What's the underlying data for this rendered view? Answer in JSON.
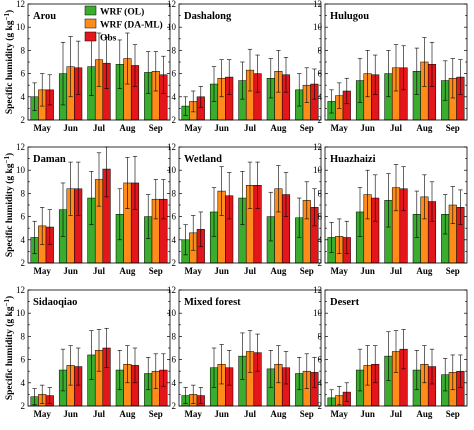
{
  "chart_data": {
    "type": "bar",
    "categories": [
      "May",
      "Jun",
      "Jul",
      "Aug",
      "Sep"
    ],
    "ylabel_pre": "Specific humidity (g kg",
    "ylabel_exp": "−1",
    "ylabel_post": ")",
    "ylim": [
      2,
      12
    ],
    "yticks": [
      2,
      4,
      6,
      8,
      10,
      12
    ],
    "legend": [
      "WRF (OL)",
      "WRF (DA-ML)",
      "Obs"
    ],
    "colors": [
      "#3aac2e",
      "#ff8c1a",
      "#e3161c"
    ],
    "panels": [
      {
        "title": "Arou",
        "series": [
          {
            "name": "WRF (OL)",
            "values": [
              4.0,
              6.0,
              6.6,
              6.8,
              6.1
            ],
            "err": [
              1.2,
              2.7,
              2.5,
              2.1,
              1.8
            ]
          },
          {
            "name": "WRF (DA-ML)",
            "values": [
              4.6,
              6.6,
              7.2,
              7.3,
              6.2
            ],
            "err": [
              1.4,
              2.6,
              2.3,
              2.2,
              1.7
            ]
          },
          {
            "name": "Obs",
            "values": [
              4.6,
              6.5,
              6.9,
              6.7,
              5.9
            ],
            "err": [
              1.3,
              2.3,
              2.2,
              1.8,
              1.6
            ]
          }
        ]
      },
      {
        "title": "Dashalong",
        "series": [
          {
            "name": "WRF (OL)",
            "values": [
              3.2,
              5.1,
              5.4,
              5.6,
              4.6
            ],
            "err": [
              0.8,
              1.5,
              1.6,
              1.7,
              1.4
            ]
          },
          {
            "name": "WRF (DA-ML)",
            "values": [
              3.6,
              5.6,
              6.3,
              6.2,
              5.0
            ],
            "err": [
              0.9,
              1.6,
              1.8,
              1.8,
              1.5
            ]
          },
          {
            "name": "Obs",
            "values": [
              4.0,
              5.7,
              6.0,
              5.9,
              5.1
            ],
            "err": [
              0.9,
              1.5,
              1.6,
              1.5,
              1.3
            ]
          }
        ]
      },
      {
        "title": "Hulugou",
        "series": [
          {
            "name": "WRF (OL)",
            "values": [
              3.6,
              5.4,
              6.0,
              6.2,
              5.4
            ],
            "err": [
              1.0,
              1.9,
              2.0,
              2.0,
              1.7
            ]
          },
          {
            "name": "WRF (DA-ML)",
            "values": [
              4.1,
              6.0,
              6.5,
              7.0,
              5.6
            ],
            "err": [
              1.1,
              2.0,
              2.0,
              2.1,
              1.7
            ]
          },
          {
            "name": "Obs",
            "values": [
              4.5,
              5.9,
              6.5,
              6.8,
              5.7
            ],
            "err": [
              1.1,
              1.7,
              1.9,
              1.9,
              1.5
            ]
          }
        ]
      },
      {
        "title": "Daman",
        "series": [
          {
            "name": "WRF (OL)",
            "values": [
              4.2,
              6.6,
              7.6,
              6.2,
              6.0
            ],
            "err": [
              1.4,
              2.3,
              2.3,
              2.2,
              1.9
            ]
          },
          {
            "name": "WRF (DA-ML)",
            "values": [
              5.2,
              8.4,
              9.2,
              8.9,
              7.5
            ],
            "err": [
              1.6,
              2.3,
              2.3,
              2.2,
              1.7
            ]
          },
          {
            "name": "Obs",
            "values": [
              5.1,
              8.4,
              10.1,
              8.9,
              7.5
            ],
            "err": [
              1.5,
              2.3,
              2.4,
              2.3,
              1.7
            ]
          }
        ]
      },
      {
        "title": "Wetland",
        "series": [
          {
            "name": "WRF (OL)",
            "values": [
              4.0,
              6.4,
              7.6,
              6.0,
              5.9
            ],
            "err": [
              1.3,
              2.1,
              2.3,
              2.1,
              1.7
            ]
          },
          {
            "name": "WRF (DA-ML)",
            "values": [
              4.6,
              8.2,
              8.7,
              8.4,
              7.4
            ],
            "err": [
              1.5,
              2.1,
              2.0,
              2.0,
              1.6
            ]
          },
          {
            "name": "Obs",
            "values": [
              4.9,
              7.8,
              8.7,
              7.9,
              6.8
            ],
            "err": [
              1.5,
              2.0,
              2.0,
              1.9,
              1.6
            ]
          }
        ]
      },
      {
        "title": "Huazhaizi",
        "series": [
          {
            "name": "WRF (OL)",
            "values": [
              4.2,
              6.4,
              7.4,
              6.2,
              6.2
            ],
            "err": [
              1.3,
              2.1,
              2.3,
              2.0,
              1.7
            ]
          },
          {
            "name": "WRF (DA-ML)",
            "values": [
              4.3,
              7.9,
              8.5,
              7.7,
              7.0
            ],
            "err": [
              1.5,
              2.1,
              2.0,
              1.9,
              1.6
            ]
          },
          {
            "name": "Obs",
            "values": [
              4.2,
              7.6,
              8.4,
              7.3,
              6.8
            ],
            "err": [
              1.4,
              2.0,
              1.9,
              1.7,
              1.5
            ]
          }
        ]
      },
      {
        "title": "Sidaoqiao",
        "series": [
          {
            "name": "WRF (OL)",
            "values": [
              2.8,
              5.1,
              6.4,
              5.1,
              4.8
            ],
            "err": [
              0.7,
              1.8,
              2.1,
              1.7,
              1.4
            ]
          },
          {
            "name": "WRF (DA-ML)",
            "values": [
              3.0,
              5.5,
              6.8,
              5.6,
              5.0
            ],
            "err": [
              0.8,
              1.7,
              1.8,
              1.6,
              1.5
            ]
          },
          {
            "name": "Obs",
            "values": [
              2.9,
              5.4,
              7.0,
              5.5,
              5.1
            ],
            "err": [
              0.7,
              1.6,
              1.7,
              1.5,
              1.4
            ]
          }
        ]
      },
      {
        "title": "Mixed forest",
        "series": [
          {
            "name": "WRF (OL)",
            "values": [
              2.9,
              5.3,
              6.3,
              5.2,
              4.8
            ],
            "err": [
              0.7,
              1.7,
              2.0,
              1.6,
              1.4
            ]
          },
          {
            "name": "WRF (DA-ML)",
            "values": [
              3.0,
              5.6,
              6.7,
              5.6,
              5.0
            ],
            "err": [
              0.8,
              1.7,
              1.8,
              1.6,
              1.5
            ]
          },
          {
            "name": "Obs",
            "values": [
              2.9,
              5.3,
              6.6,
              5.3,
              4.9
            ],
            "err": [
              0.7,
              1.5,
              1.6,
              1.4,
              1.3
            ]
          }
        ]
      },
      {
        "title": "Desert",
        "series": [
          {
            "name": "WRF (OL)",
            "values": [
              2.7,
              5.1,
              6.3,
              5.1,
              4.7
            ],
            "err": [
              0.7,
              1.8,
              2.1,
              1.7,
              1.4
            ]
          },
          {
            "name": "WRF (DA-ML)",
            "values": [
              2.9,
              5.5,
              6.7,
              5.6,
              4.9
            ],
            "err": [
              0.8,
              1.7,
              1.8,
              1.6,
              1.5
            ]
          },
          {
            "name": "Obs",
            "values": [
              3.2,
              5.6,
              6.9,
              5.4,
              5.0
            ],
            "err": [
              0.8,
              1.6,
              1.7,
              1.5,
              1.4
            ]
          }
        ]
      }
    ]
  }
}
